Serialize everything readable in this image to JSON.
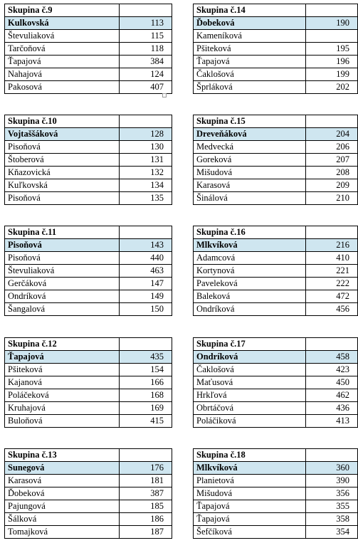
{
  "groups": [
    {
      "title": "Skupina č.9",
      "leader": {
        "name": "Kulkovská",
        "value": "113"
      },
      "rows": [
        {
          "name": "Števuliaková",
          "value": "115"
        },
        {
          "name": "Tarčoňová",
          "value": "118"
        },
        {
          "name": "Ťapajová",
          "value": "384"
        },
        {
          "name": "Nahajová",
          "value": "124"
        },
        {
          "name": "Pakosová",
          "value": "407"
        }
      ]
    },
    {
      "title": "Skupina č.14",
      "leader": {
        "name": "Ďobeková",
        "value": "190"
      },
      "rows": [
        {
          "name": "Kameníková",
          "value": ""
        },
        {
          "name": "Pšiteková",
          "value": "195"
        },
        {
          "name": "Ťapajová",
          "value": "196"
        },
        {
          "name": "Čaklošová",
          "value": "199"
        },
        {
          "name": "Šprláková",
          "value": "202"
        }
      ]
    },
    {
      "title": "Skupina č.10",
      "leader": {
        "name": "Vojtaššáková",
        "value": "128"
      },
      "rows": [
        {
          "name": "Pisoňová",
          "value": "130"
        },
        {
          "name": "Štoberová",
          "value": "131"
        },
        {
          "name": "Kňazovická",
          "value": "132"
        },
        {
          "name": "Kuľkovská",
          "value": "134"
        },
        {
          "name": "Pisoňová",
          "value": "135"
        }
      ]
    },
    {
      "title": "Skupina č.15",
      "leader": {
        "name": "Dreveňáková",
        "value": "204"
      },
      "rows": [
        {
          "name": "Medvecká",
          "value": "206"
        },
        {
          "name": "Goreková",
          "value": "207"
        },
        {
          "name": "Mišudová",
          "value": "208"
        },
        {
          "name": "Karasová",
          "value": "209"
        },
        {
          "name": "Šinálová",
          "value": "210"
        }
      ]
    },
    {
      "title": "Skupina č.11",
      "leader": {
        "name": "Pisoňová",
        "value": "143"
      },
      "rows": [
        {
          "name": "Pisoňová",
          "value": "440"
        },
        {
          "name": "Števuliaková",
          "value": "463"
        },
        {
          "name": "Gerčáková",
          "value": "147"
        },
        {
          "name": "Ondríková",
          "value": "149"
        },
        {
          "name": "Šangalová",
          "value": "150"
        }
      ]
    },
    {
      "title": "Skupina č.16",
      "leader": {
        "name": "Mlkvíková",
        "value": "216"
      },
      "rows": [
        {
          "name": "Adamcová",
          "value": "410"
        },
        {
          "name": "Kortynová",
          "value": "221"
        },
        {
          "name": "Paveleková",
          "value": "222"
        },
        {
          "name": "Baleková",
          "value": "472"
        },
        {
          "name": "Ondríková",
          "value": "456"
        }
      ]
    },
    {
      "title": "Skupina č.12",
      "leader": {
        "name": "Ťapajová",
        "value": "435"
      },
      "rows": [
        {
          "name": "Pšiteková",
          "value": "154"
        },
        {
          "name": "Kajanová",
          "value": "166"
        },
        {
          "name": "Poláčeková",
          "value": "168"
        },
        {
          "name": "Kruhajová",
          "value": "169"
        },
        {
          "name": "Buloňová",
          "value": "415"
        }
      ]
    },
    {
      "title": "Skupina č.17",
      "leader": {
        "name": "Ondríková",
        "value": "458"
      },
      "rows": [
        {
          "name": "Čaklošová",
          "value": "423"
        },
        {
          "name": "Maťusová",
          "value": "450"
        },
        {
          "name": "Hrkľová",
          "value": "462"
        },
        {
          "name": "Obrtáčová",
          "value": "436"
        },
        {
          "name": "Poláčiková",
          "value": "413"
        }
      ]
    },
    {
      "title": "Skupina č.13",
      "leader": {
        "name": "Sunegová",
        "value": "176"
      },
      "rows": [
        {
          "name": "Karasová",
          "value": "181"
        },
        {
          "name": "Ďobeková",
          "value": "387"
        },
        {
          "name": "Pajungová",
          "value": "185"
        },
        {
          "name": "Šálková",
          "value": "186"
        },
        {
          "name": "Tomajková",
          "value": "187"
        }
      ]
    },
    {
      "title": "Skupina č.18",
      "leader": {
        "name": "Mlkvíková",
        "value": "360"
      },
      "rows": [
        {
          "name": "Planietová",
          "value": "390"
        },
        {
          "name": "Mišudová",
          "value": "356"
        },
        {
          "name": "Ťapajová",
          "value": "355"
        },
        {
          "name": "Ťapajová",
          "value": "358"
        },
        {
          "name": "Šefčíková",
          "value": "354"
        }
      ]
    }
  ],
  "colors": {
    "leader_row_background": "#cfe6f0",
    "border": "#000000"
  }
}
